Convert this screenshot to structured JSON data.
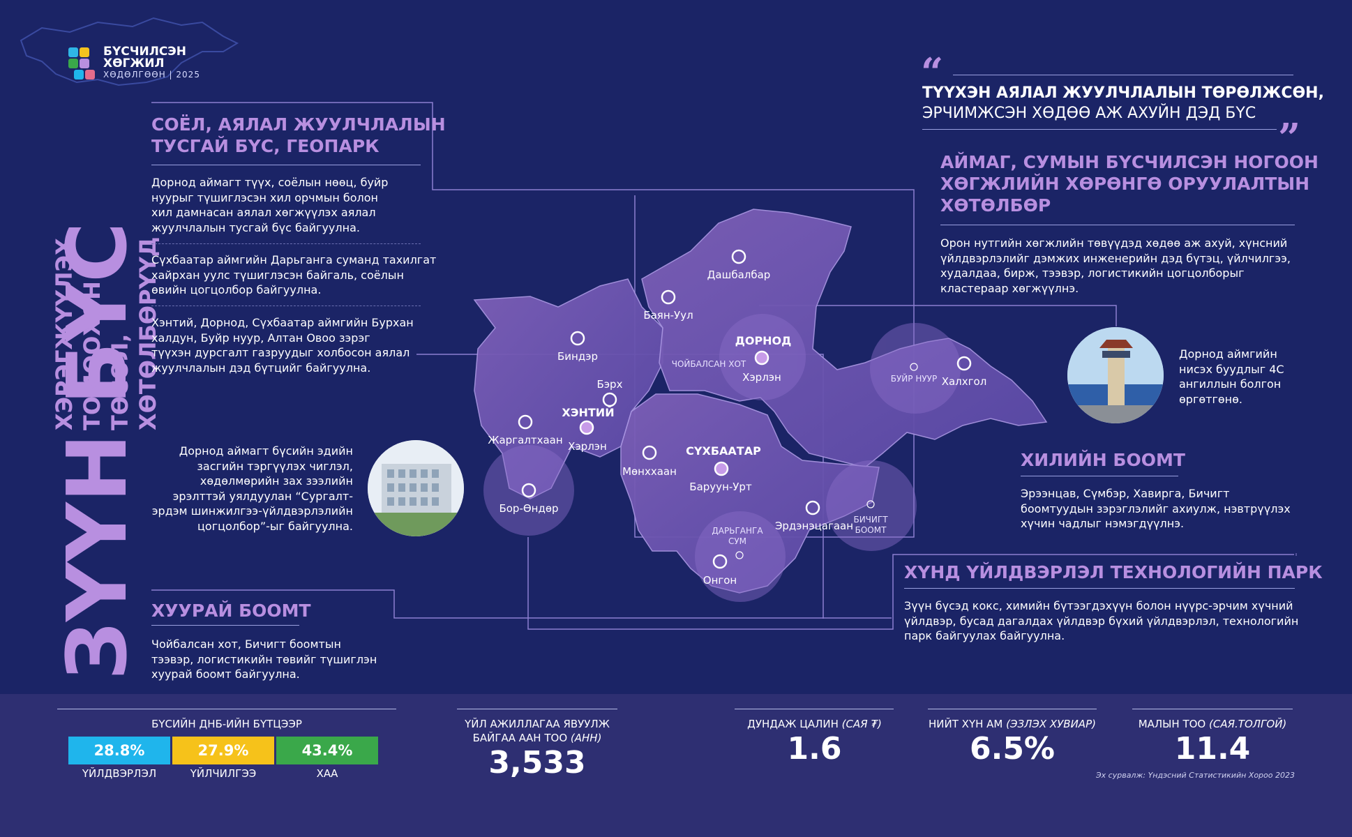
{
  "logo": {
    "line1": "БҮСЧИЛСЭН",
    "line2": "ХӨГЖИЛ",
    "line3": "ХӨДӨЛГӨӨН | 2025"
  },
  "vertical_title": {
    "main": "ЗҮҮН БҮС",
    "sub1": "ХЭРЭГЖҮҮЛЭХ",
    "sub2": "ТОМООХОН ТӨСӨЛ,",
    "sub3": "ХӨТӨЛБӨРҮҮД"
  },
  "sections": {
    "culture": {
      "title1": "СОЁЛ, АЯЛАЛ ЖУУЛЧЛАЛЫН",
      "title2": "ТУСГАЙ БҮС, ГЕОПАРК",
      "p1": [
        "Дорнод аймагт түүх, соёлын нөөц, буйр",
        "нуурыг түшиглэсэн хил орчмын болон",
        "хил дамнасан аялал хөгжүүлэх аялал",
        "жуулчлалын тусгай бүс байгуулна."
      ],
      "p2": [
        "Сүхбаатар аймгийн Дарьганга суманд тахилгат",
        "хайрхан уулс түшиглэсэн байгаль, соёлын",
        "өвийн цогцолбор байгуулна."
      ],
      "p3": [
        "Хэнтий, Дорнод, Сүхбаатар аймгийн Бурхан",
        "халдун, Буйр нуур, Алтан Овоо зэрэг",
        "түүхэн дурсгалт газруудыг холбосон аялал",
        "жуулчлалын дэд бүтцийг байгуулна."
      ]
    },
    "university": {
      "lines": [
        "Дорнод аймагт бүсийн эдийн",
        "засгийн тэргүүлэх чиглэл,",
        "хөдөлмөрийн зах зээлийн",
        "эрэлттэй уялдуулан “Сургалт-",
        "эрдэм шинжилгээ-үйлдвэрлэлийн",
        "цогцолбор”-ыг байгуулна."
      ]
    },
    "hub_port": {
      "title": "ХУУРАЙ БООМТ",
      "lines": [
        "Чойбалсан хот, Бичигт боомтын",
        "тээвэр, логистикийн төвийг түшиглэн",
        "хуурай боомт байгуулна."
      ]
    },
    "quote": {
      "open": "“",
      "close": "”",
      "line1": "ТҮҮХЭН АЯЛАЛ ЖУУЛЧЛАЛЫН ТӨРӨЛЖСӨН,",
      "line2": "ЭРЧИМЖСЭН ХӨДӨӨ АЖ АХУЙН ДЭД БҮС"
    },
    "green": {
      "title1": "АЙМАГ, СУМЫН БҮСЧИЛСЭН НОГООН",
      "title2": "ХӨГЖЛИЙН ХӨРӨНГӨ ОРУУЛАЛТЫН",
      "title3": "ХӨТӨЛБӨР",
      "lines": [
        "Орон нутгийн хөгжлийн төвүүдэд хөдөө аж ахуй, хүнсний",
        "үйлдвэрлэлийг дэмжих инженерийн дэд бүтэц, үйлчилгээ,",
        "худалдаа, бирж, тээвэр, логистикийн цогцолборыг",
        "кластераар хөгжүүлнэ."
      ]
    },
    "airport": {
      "lines": [
        "Дорнод аймгийн",
        "нисэх буудлыг 4С",
        "ангиллын болгон",
        "өргөтгөнө."
      ]
    },
    "border": {
      "title": "ХИЛИЙН БООМТ",
      "lines": [
        "Эрээнцав, Сүмбэр, Хавирга, Бичигт",
        "боомтуудын зэрэглэлийг ахиулж, нэвтрүүлэх",
        "хүчин чадлыг нэмэгдүүлнэ."
      ]
    },
    "tech_park": {
      "title": "ХҮНД ҮЙЛДВЭРЛЭЛ ТЕХНОЛОГИЙН ПАРК",
      "lines": [
        "Зүүн бүсэд кокс, химийн бүтээгдэхүүн болон нүүрс-эрчим хүчний",
        "үйлдвэр, бусад дагалдах үйлдвэр бүхий үйлдвэрлэл, технологийн",
        "парк байгуулах байгуулна."
      ]
    }
  },
  "map": {
    "regions": {
      "dornod": "ДОРНОД",
      "khentii": "ХЭНТИЙ",
      "sukhbaatar": "СҮХБААТАР"
    },
    "places": {
      "dashbalbar": "Дашбалбар",
      "bayan_uul": "Баян-Уул",
      "choibalsan": "ЧОЙБАЛСАН ХОТ",
      "kherlen_d": "Хэрлэн",
      "binder": "Биндэр",
      "berkh": "Бэрх",
      "jargaltkhaan": "Жаргалтхаан",
      "kherlen_k": "Хэрлэн",
      "bor_undur": "Бор-Өндөр",
      "munkhkhaan": "Мөнххаан",
      "baruun_urt": "Баруун-Урт",
      "dariganga1": "ДАРЬГАНГА",
      "dariganga2": "СУМ",
      "ongon": "Онгон",
      "erdenetsagaan": "Эрдэнэцагаан",
      "bichigt1": "БИЧИГТ",
      "bichigt2": "БООМТ",
      "buir": "БУЙР НУУР",
      "khalkhgol": "Халхгол"
    }
  },
  "stats": {
    "gdp_title": "БҮСИЙН ДНБ-ИЙН БҮТЦЭЭР",
    "gdp_bars": [
      {
        "value": "28.8%",
        "label": "ҮЙЛДВЭРЛЭЛ",
        "color": "#1fb5ec",
        "share": 28.8
      },
      {
        "value": "27.9%",
        "label": "ҮЙЛЧИЛГЭЭ",
        "color": "#f6c21a",
        "share": 27.9
      },
      {
        "value": "43.4%",
        "label": "ХАА",
        "color": "#3aa84a",
        "share": 43.4
      }
    ],
    "enterprises": {
      "label1": "ҮЙЛ АЖИЛЛАГАА ЯВУУЛЖ",
      "label2": "БАЙГАА ААН ТОО ",
      "unit": "(АНН)",
      "value": "3,533"
    },
    "salary": {
      "label": "ДУНДАЖ ЦАЛИН ",
      "unit": "(САЯ ₮)",
      "value": "1.6"
    },
    "population": {
      "label": "НИЙТ ХҮН АМ ",
      "unit": "(ЭЗЛЭХ ХУВИАР)",
      "value": "6.5%"
    },
    "livestock": {
      "label": "МАЛЫН ТОО ",
      "unit": "(САЯ.ТОЛГОЙ)",
      "value": "11.4"
    },
    "source": "Эх сурвалж: Үндэсний Статистикийн Хороо 2023"
  }
}
